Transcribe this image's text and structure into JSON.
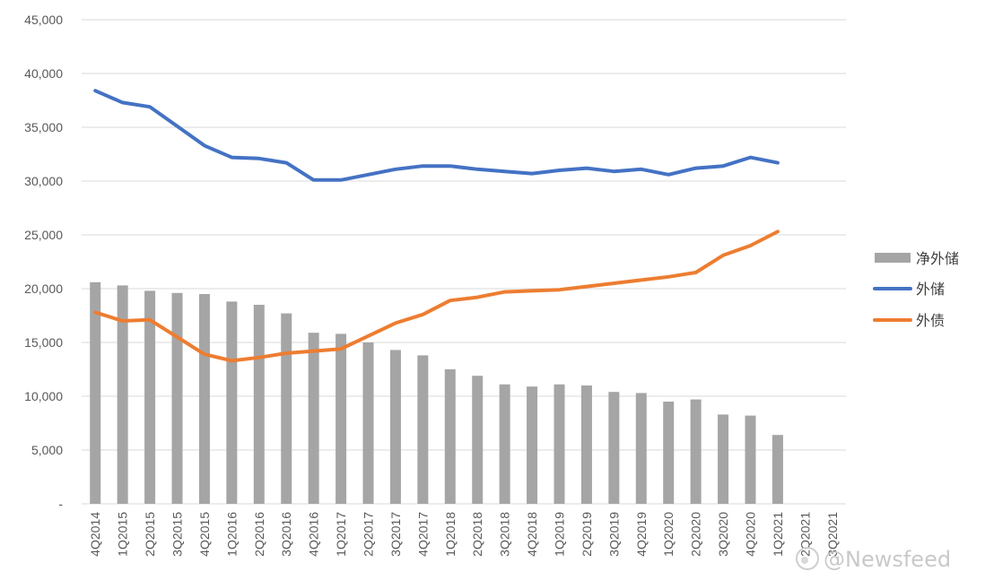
{
  "chart_data": {
    "type": "bar",
    "categories": [
      "4Q2014",
      "1Q2015",
      "2Q2015",
      "3Q2015",
      "4Q2015",
      "1Q2016",
      "2Q2016",
      "3Q2016",
      "4Q2016",
      "1Q2017",
      "2Q2017",
      "3Q2017",
      "4Q2017",
      "1Q2018",
      "2Q2018",
      "3Q2018",
      "4Q2018",
      "1Q2019",
      "2Q2019",
      "3Q2019",
      "4Q2019",
      "1Q2020",
      "2Q2020",
      "3Q2020",
      "4Q2020",
      "1Q2021",
      "2Q2021",
      "3Q2021"
    ],
    "series": [
      {
        "name": "净外储",
        "type": "bar",
        "color": "#a5a5a5",
        "values": [
          20600,
          20300,
          19800,
          19600,
          19500,
          18800,
          18500,
          17700,
          15900,
          15800,
          15000,
          14300,
          13800,
          12500,
          11900,
          11100,
          10900,
          11100,
          11000,
          10400,
          10300,
          9500,
          9700,
          8300,
          8200,
          6400,
          null,
          null
        ]
      },
      {
        "name": "外储",
        "type": "line",
        "color": "#4472c4",
        "values": [
          38400,
          37300,
          36900,
          35100,
          33300,
          32200,
          32100,
          31700,
          30100,
          30100,
          30600,
          31100,
          31400,
          31400,
          31100,
          30900,
          30700,
          31000,
          31200,
          30900,
          31100,
          30600,
          31200,
          31400,
          32200,
          31700,
          null,
          null
        ]
      },
      {
        "name": "外债",
        "type": "line",
        "color": "#ed7d31",
        "values": [
          17800,
          17000,
          17100,
          15500,
          13900,
          13300,
          13600,
          14000,
          14200,
          14400,
          15600,
          16800,
          17600,
          18900,
          19200,
          19700,
          19800,
          19900,
          20200,
          20500,
          20800,
          21100,
          21500,
          23100,
          24000,
          25300,
          null,
          null
        ]
      }
    ],
    "title": "",
    "xlabel": "",
    "ylabel": "",
    "ylim": [
      0,
      45000
    ],
    "yticks": [
      0,
      5000,
      10000,
      15000,
      20000,
      25000,
      30000,
      35000,
      40000,
      45000
    ],
    "ytick_labels": [
      "-",
      "5,000",
      "10,000",
      "15,000",
      "20,000",
      "25,000",
      "30,000",
      "35,000",
      "40,000",
      "45,000"
    ],
    "grid": true,
    "legend": "right"
  },
  "watermark": {
    "text": "@Newsfeed"
  }
}
